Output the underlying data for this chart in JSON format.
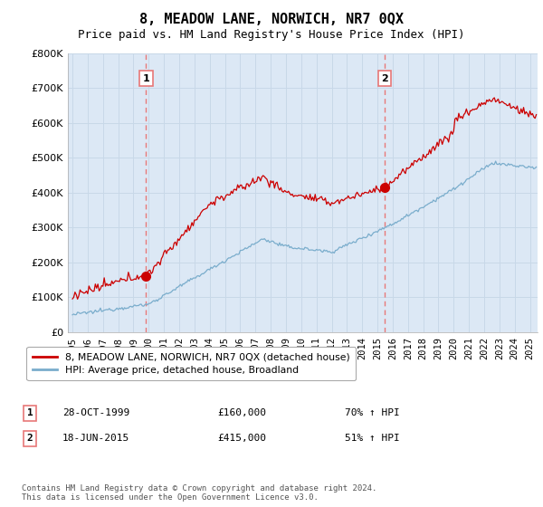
{
  "title": "8, MEADOW LANE, NORWICH, NR7 0QX",
  "subtitle": "Price paid vs. HM Land Registry's House Price Index (HPI)",
  "ylabel_ticks": [
    "£0",
    "£100K",
    "£200K",
    "£300K",
    "£400K",
    "£500K",
    "£600K",
    "£700K",
    "£800K"
  ],
  "ytick_values": [
    0,
    100000,
    200000,
    300000,
    400000,
    500000,
    600000,
    700000,
    800000
  ],
  "ylim": [
    0,
    800000
  ],
  "xlim_start": 1994.7,
  "xlim_end": 2025.5,
  "title_fontsize": 11,
  "subtitle_fontsize": 9,
  "red_color": "#cc0000",
  "blue_color": "#7aadcc",
  "dashed_color": "#e87878",
  "plot_bg_color": "#dce8f5",
  "legend_label_red": "8, MEADOW LANE, NORWICH, NR7 0QX (detached house)",
  "legend_label_blue": "HPI: Average price, detached house, Broadland",
  "sale1_date": "28-OCT-1999",
  "sale1_price": "£160,000",
  "sale1_hpi": "70% ↑ HPI",
  "sale1_year": 1999.83,
  "sale1_value": 160000,
  "sale2_date": "18-JUN-2015",
  "sale2_price": "£415,000",
  "sale2_hpi": "51% ↑ HPI",
  "sale2_year": 2015.46,
  "sale2_value": 415000,
  "footer": "Contains HM Land Registry data © Crown copyright and database right 2024.\nThis data is licensed under the Open Government Licence v3.0.",
  "background_color": "#ffffff",
  "grid_color": "#c8d8e8"
}
